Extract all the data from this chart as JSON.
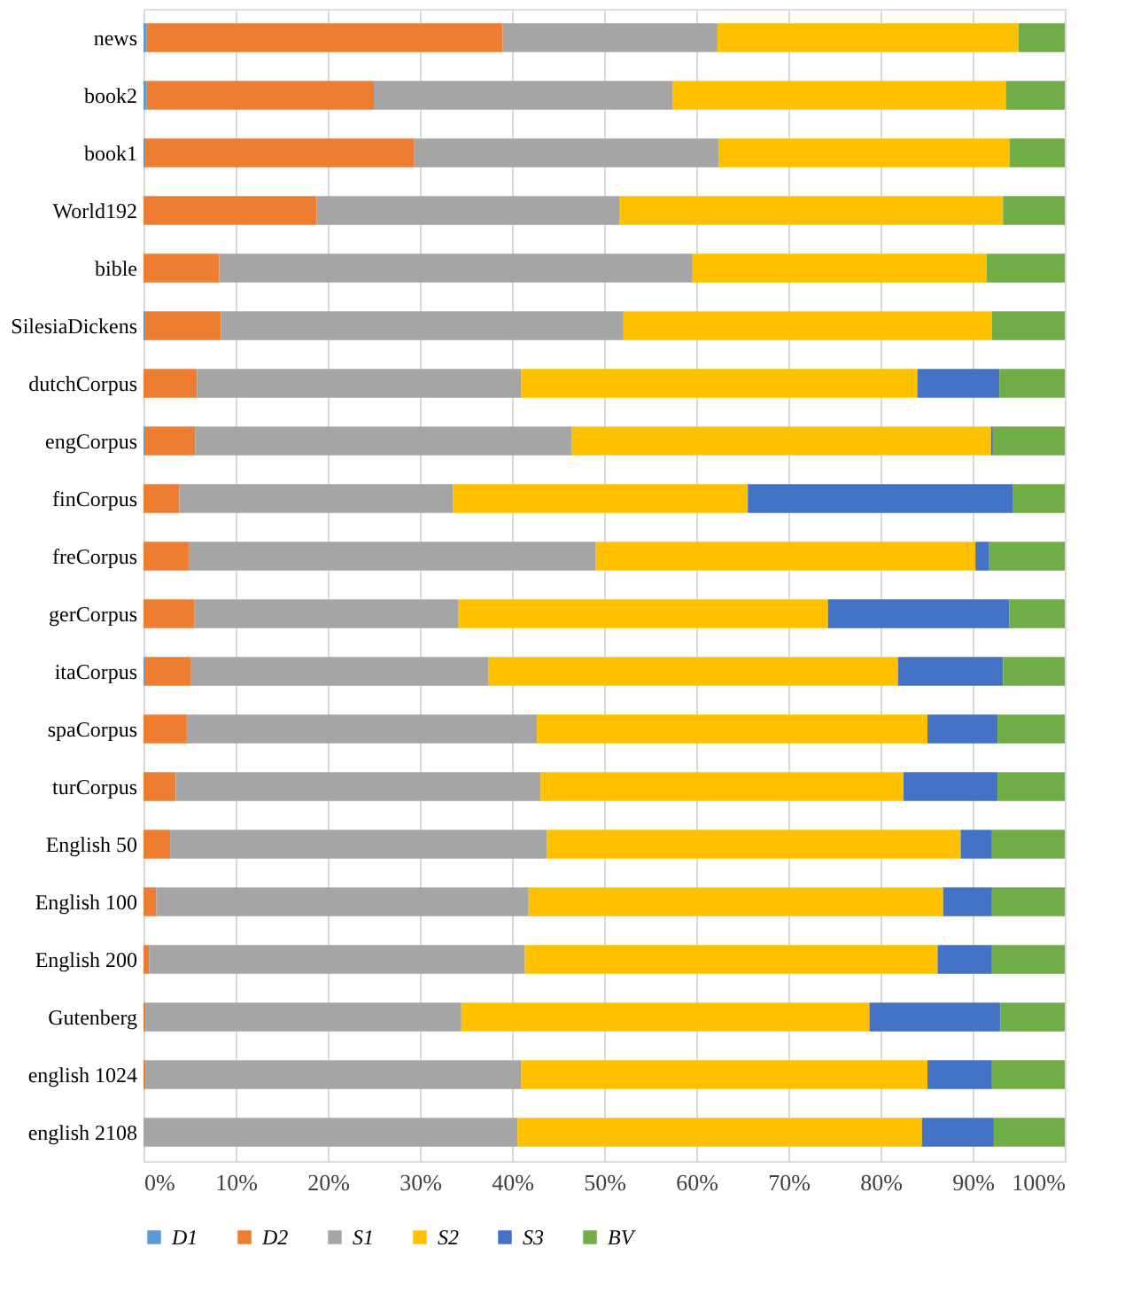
{
  "chart_data": {
    "type": "bar",
    "orientation": "horizontal",
    "stacked": true,
    "categories": [
      "news",
      "book2",
      "book1",
      "World192",
      "bible",
      "SilesiaDickens",
      "dutchCorpus",
      "engCorpus",
      "finCorpus",
      "freCorpus",
      "gerCorpus",
      "itaCorpus",
      "spaCorpus",
      "turCorpus",
      "English 50",
      "English 100",
      "English 200",
      "Gutenberg",
      "english 1024",
      "english 2108"
    ],
    "series": [
      {
        "name": "D1",
        "color": "#5b9bd5",
        "values": [
          0.3,
          0.3,
          0.2,
          0,
          0,
          0.2,
          0,
          0.1,
          0,
          0,
          0,
          0.1,
          0,
          0,
          0,
          0,
          0,
          0,
          0,
          0
        ]
      },
      {
        "name": "D2",
        "color": "#ed7d31",
        "values": [
          38.7,
          24.7,
          29.2,
          18.8,
          8.2,
          8.2,
          5.8,
          5.5,
          3.9,
          4.9,
          5.5,
          5,
          4.7,
          3.5,
          2.9,
          1.4,
          0.6,
          0.2,
          0.2,
          0
        ]
      },
      {
        "name": "S1",
        "color": "#a5a5a5",
        "values": [
          23.3,
          32.4,
          33,
          32.9,
          51.4,
          43.7,
          35.2,
          40.9,
          29.7,
          44.2,
          28.7,
          32.3,
          38,
          39.6,
          40.9,
          40.4,
          40.8,
          34.3,
          40.8,
          40.6
        ]
      },
      {
        "name": "S2",
        "color": "#ffc000",
        "values": [
          32.7,
          36.2,
          31.6,
          41.6,
          31.9,
          40,
          43,
          45.5,
          32,
          41.2,
          40.1,
          44.5,
          42.4,
          39.4,
          44.9,
          45,
          44.8,
          44.3,
          44.1,
          43.9
        ]
      },
      {
        "name": "S3",
        "color": "#4472c4",
        "values": [
          0,
          0,
          0,
          0,
          0,
          0,
          8.9,
          0.2,
          28.8,
          1.5,
          19.7,
          11.4,
          7.6,
          10.2,
          3.4,
          5.3,
          5.9,
          14.2,
          7,
          7.8
        ]
      },
      {
        "name": "BV",
        "color": "#70ad47",
        "values": [
          5,
          6.4,
          6,
          6.7,
          8.5,
          7.9,
          7.1,
          7.8,
          5.6,
          8.2,
          6,
          6.7,
          7.3,
          7.3,
          7.9,
          7.9,
          7.9,
          7,
          7.9,
          7.7
        ]
      }
    ],
    "xlim": [
      0,
      100
    ],
    "xticks": [
      {
        "value": 0,
        "label": "0%"
      },
      {
        "value": 10,
        "label": "10%"
      },
      {
        "value": 20,
        "label": "20%"
      },
      {
        "value": 30,
        "label": "30%"
      },
      {
        "value": 40,
        "label": "40%"
      },
      {
        "value": 50,
        "label": "50%"
      },
      {
        "value": 60,
        "label": "60%"
      },
      {
        "value": 70,
        "label": "70%"
      },
      {
        "value": 80,
        "label": "80%"
      },
      {
        "value": 90,
        "label": "90%"
      },
      {
        "value": 100,
        "label": "100%"
      }
    ],
    "grid": "x",
    "legend": "bottom"
  }
}
